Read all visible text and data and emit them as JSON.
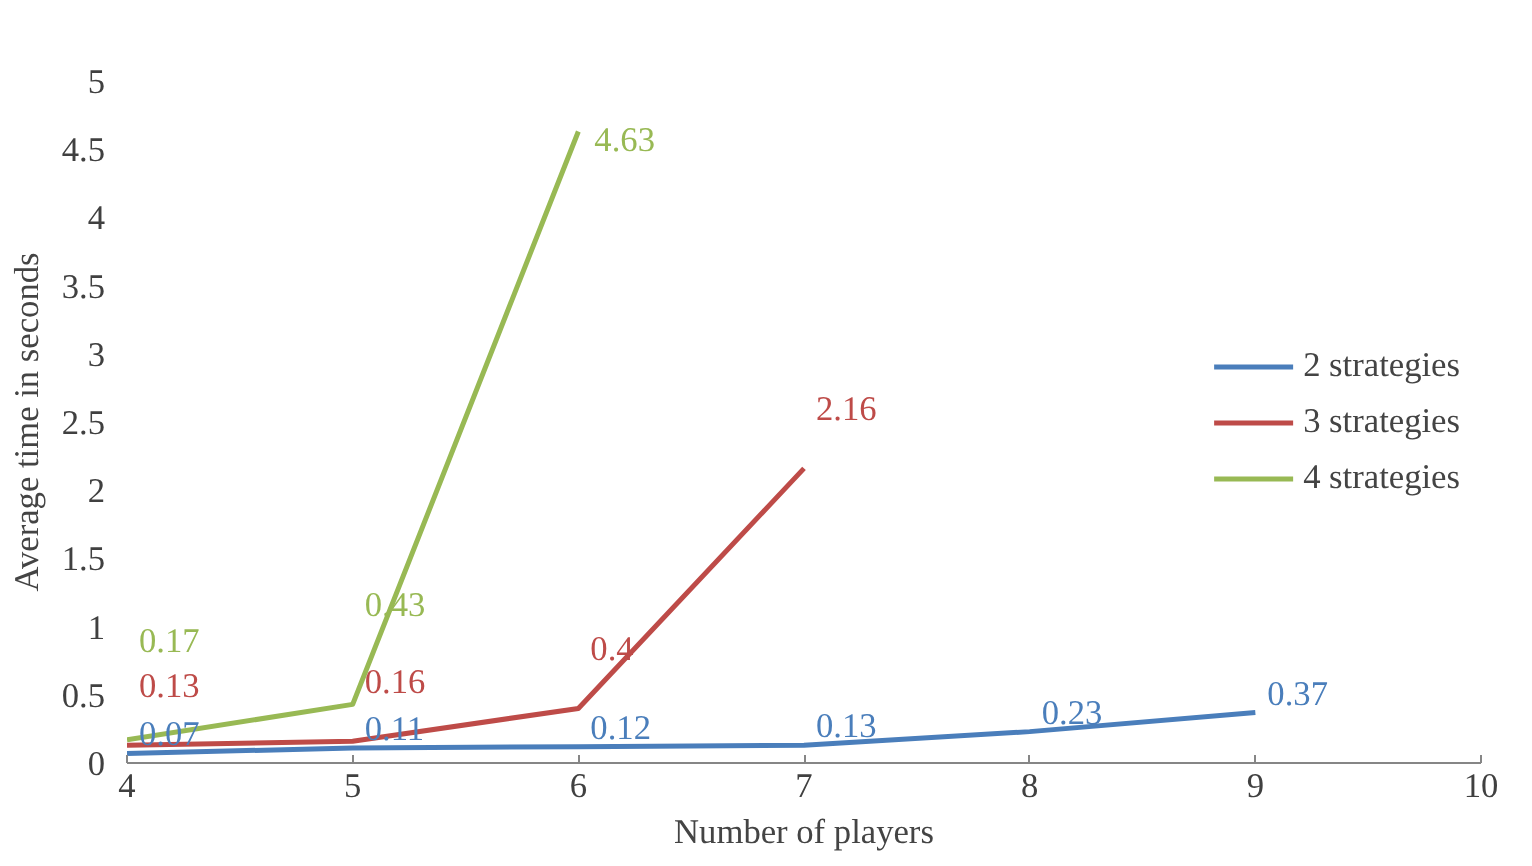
{
  "chart_data": {
    "type": "line",
    "xlabel": "Number of players",
    "ylabel": "Average time in seconds",
    "xlim": [
      4,
      10
    ],
    "xticks": [
      4,
      5,
      6,
      7,
      8,
      9,
      10
    ],
    "ylim": [
      0,
      5
    ],
    "yticks": [
      0,
      0.5,
      1,
      1.5,
      2,
      2.5,
      3,
      3.5,
      4,
      4.5,
      5
    ],
    "grid": false,
    "legend": "right",
    "data_labels": true,
    "marker": "none",
    "line_style": "solid",
    "series": [
      {
        "name": "2 strategies",
        "color": "#4a7ebb",
        "x": [
          4,
          5,
          6,
          7,
          8,
          9
        ],
        "values": [
          0.07,
          0.11,
          0.12,
          0.13,
          0.23,
          0.37
        ]
      },
      {
        "name": "3 strategies",
        "color": "#be4b48",
        "x": [
          4,
          5,
          6,
          7
        ],
        "values": [
          0.13,
          0.16,
          0.4,
          2.16
        ]
      },
      {
        "name": "4 strategies",
        "color": "#98b954",
        "x": [
          4,
          5,
          6
        ],
        "values": [
          0.17,
          0.43,
          4.63
        ]
      }
    ]
  }
}
